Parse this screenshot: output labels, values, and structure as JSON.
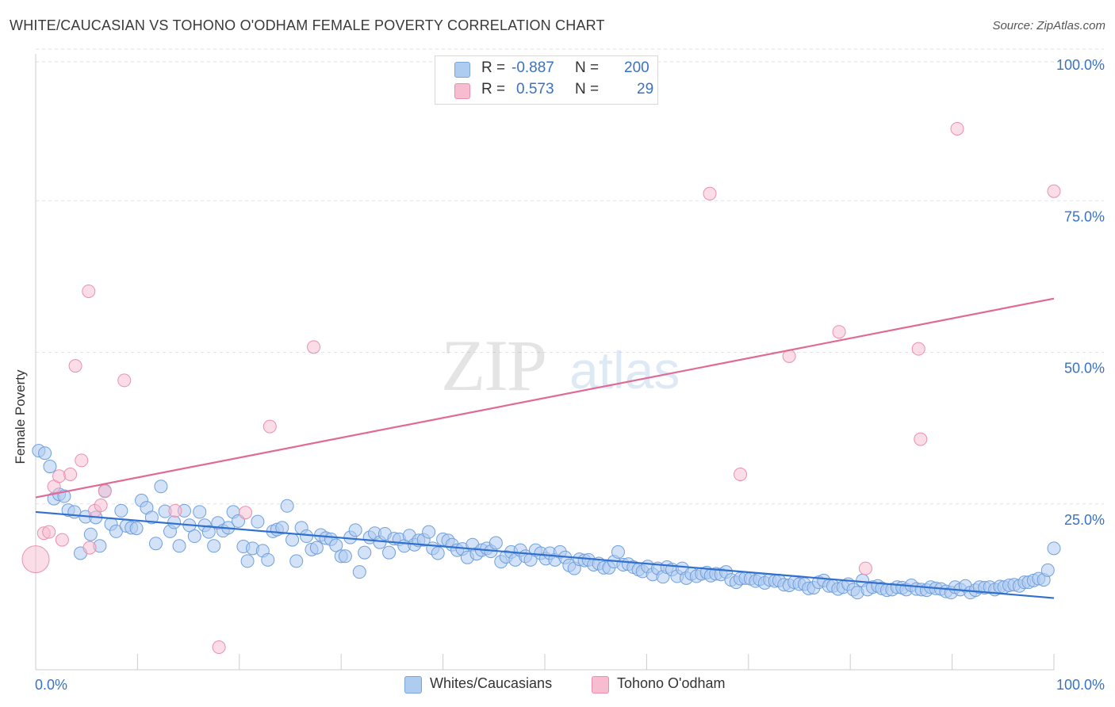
{
  "title": "WHITE/CAUCASIAN VS TOHONO O'ODHAM FEMALE POVERTY CORRELATION CHART",
  "source": "Source: ZipAtlas.com",
  "watermark": {
    "zip": "ZIP",
    "atlas": "atlas"
  },
  "legend_top": {
    "rows": [
      {
        "r_label": "R =",
        "r_value": "-0.887",
        "n_label": "N =",
        "n_value": "200",
        "color": "#aecbf0"
      },
      {
        "r_label": "R =",
        "r_value": "0.573",
        "n_label": "N =",
        "n_value": "29",
        "color": "#f7bcd0"
      }
    ]
  },
  "legend_bottom": [
    {
      "label": "Whites/Caucasians",
      "color": "#aecbf0"
    },
    {
      "label": "Tohono O'odham",
      "color": "#f7bcd0"
    }
  ],
  "chart_data": {
    "type": "scatter",
    "xlabel": "",
    "ylabel": "Female Poverty",
    "xlim": [
      0,
      100
    ],
    "ylim": [
      0,
      100
    ],
    "x_tick_labels": [
      {
        "value": 0,
        "label": "0.0%"
      },
      {
        "value": 100,
        "label": "100.0%"
      }
    ],
    "y_tick_labels": [
      {
        "value": 25,
        "label": "25.0%"
      },
      {
        "value": 50,
        "label": "50.0%"
      },
      {
        "value": 75,
        "label": "75.0%"
      },
      {
        "value": 100,
        "label": "100.0%"
      }
    ],
    "grid": true,
    "series": [
      {
        "name": "Whites/Caucasians",
        "color": "#6fa0dc",
        "fill": "#aecbf0",
        "trend": {
          "x": [
            0,
            100
          ],
          "y": [
            23.8,
            9.6
          ],
          "color": "#2f6fcf"
        },
        "points": [
          [
            0.3,
            33.9
          ],
          [
            0.9,
            33.5
          ],
          [
            1.4,
            31.3
          ],
          [
            1.8,
            26.0
          ],
          [
            2.3,
            26.7
          ],
          [
            2.8,
            26.4
          ],
          [
            3.2,
            24.1
          ],
          [
            3.8,
            23.8
          ],
          [
            4.4,
            17.0
          ],
          [
            4.9,
            23.0
          ],
          [
            5.4,
            20.1
          ],
          [
            5.9,
            22.9
          ],
          [
            6.3,
            18.2
          ],
          [
            6.8,
            27.3
          ],
          [
            7.4,
            21.8
          ],
          [
            7.9,
            20.6
          ],
          [
            8.4,
            24.0
          ],
          [
            8.9,
            21.5
          ],
          [
            9.4,
            21.2
          ],
          [
            9.9,
            21.1
          ],
          [
            10.4,
            25.7
          ],
          [
            10.9,
            24.5
          ],
          [
            11.4,
            22.9
          ],
          [
            11.8,
            18.6
          ],
          [
            12.3,
            28.0
          ],
          [
            12.7,
            23.9
          ],
          [
            13.2,
            20.6
          ],
          [
            13.6,
            22.1
          ],
          [
            14.1,
            18.2
          ],
          [
            14.6,
            24.0
          ],
          [
            15.1,
            21.6
          ],
          [
            15.6,
            19.8
          ],
          [
            16.1,
            23.8
          ],
          [
            16.6,
            21.6
          ],
          [
            17.0,
            20.5
          ],
          [
            17.5,
            18.2
          ],
          [
            17.9,
            22.0
          ],
          [
            18.4,
            20.7
          ],
          [
            18.9,
            21.2
          ],
          [
            19.4,
            23.8
          ],
          [
            19.9,
            22.3
          ],
          [
            20.4,
            18.1
          ],
          [
            20.8,
            15.7
          ],
          [
            21.3,
            17.8
          ],
          [
            21.8,
            22.2
          ],
          [
            22.3,
            17.4
          ],
          [
            22.8,
            15.9
          ],
          [
            23.3,
            20.6
          ],
          [
            23.7,
            20.9
          ],
          [
            24.2,
            21.2
          ],
          [
            24.7,
            24.8
          ],
          [
            25.2,
            19.2
          ],
          [
            25.6,
            15.7
          ],
          [
            26.1,
            21.2
          ],
          [
            26.6,
            19.8
          ],
          [
            27.1,
            17.6
          ],
          [
            27.6,
            17.9
          ],
          [
            28.0,
            20.0
          ],
          [
            28.5,
            19.5
          ],
          [
            29.0,
            19.3
          ],
          [
            29.5,
            18.3
          ],
          [
            30.0,
            16.5
          ],
          [
            30.4,
            16.5
          ],
          [
            30.9,
            19.6
          ],
          [
            31.4,
            20.8
          ],
          [
            31.8,
            13.9
          ],
          [
            32.3,
            17.1
          ],
          [
            32.8,
            19.6
          ],
          [
            33.3,
            20.3
          ],
          [
            33.8,
            18.8
          ],
          [
            34.3,
            20.2
          ],
          [
            34.7,
            17.1
          ],
          [
            35.2,
            19.4
          ],
          [
            35.7,
            19.3
          ],
          [
            36.2,
            18.2
          ],
          [
            36.7,
            19.9
          ],
          [
            37.2,
            18.4
          ],
          [
            37.6,
            19.1
          ],
          [
            38.1,
            19.2
          ],
          [
            38.6,
            20.5
          ],
          [
            39.0,
            17.8
          ],
          [
            39.5,
            17.0
          ],
          [
            40.0,
            19.3
          ],
          [
            40.5,
            19.1
          ],
          [
            40.9,
            18.4
          ],
          [
            41.4,
            17.5
          ],
          [
            41.9,
            17.7
          ],
          [
            42.4,
            16.3
          ],
          [
            42.9,
            18.4
          ],
          [
            43.3,
            16.9
          ],
          [
            43.8,
            17.5
          ],
          [
            44.3,
            17.8
          ],
          [
            44.7,
            17.3
          ],
          [
            45.2,
            18.7
          ],
          [
            45.7,
            15.6
          ],
          [
            46.2,
            16.4
          ],
          [
            46.7,
            17.2
          ],
          [
            47.1,
            15.9
          ],
          [
            47.6,
            17.5
          ],
          [
            48.1,
            16.5
          ],
          [
            48.6,
            15.9
          ],
          [
            49.1,
            17.5
          ],
          [
            49.6,
            17.0
          ],
          [
            50.1,
            16.1
          ],
          [
            50.5,
            17.0
          ],
          [
            51.0,
            15.9
          ],
          [
            51.5,
            17.2
          ],
          [
            52.0,
            16.3
          ],
          [
            52.4,
            15.0
          ],
          [
            52.9,
            14.5
          ],
          [
            53.4,
            16.0
          ],
          [
            53.9,
            15.8
          ],
          [
            54.3,
            15.9
          ],
          [
            54.8,
            15.1
          ],
          [
            55.3,
            15.3
          ],
          [
            55.8,
            14.6
          ],
          [
            56.3,
            14.6
          ],
          [
            56.8,
            15.6
          ],
          [
            57.2,
            17.2
          ],
          [
            57.7,
            15.1
          ],
          [
            58.2,
            15.2
          ],
          [
            58.7,
            14.7
          ],
          [
            59.2,
            14.3
          ],
          [
            59.6,
            14.0
          ],
          [
            60.1,
            14.8
          ],
          [
            60.6,
            13.5
          ],
          [
            61.1,
            14.5
          ],
          [
            61.6,
            13.1
          ],
          [
            62.0,
            14.7
          ],
          [
            62.5,
            14.3
          ],
          [
            63.0,
            13.2
          ],
          [
            63.5,
            14.5
          ],
          [
            63.9,
            12.9
          ],
          [
            64.4,
            13.6
          ],
          [
            64.9,
            13.2
          ],
          [
            65.4,
            13.6
          ],
          [
            65.9,
            13.8
          ],
          [
            66.3,
            13.3
          ],
          [
            66.8,
            13.6
          ],
          [
            67.3,
            13.5
          ],
          [
            67.8,
            13.9
          ],
          [
            68.3,
            12.6
          ],
          [
            68.8,
            12.2
          ],
          [
            69.2,
            12.8
          ],
          [
            69.7,
            12.9
          ],
          [
            70.2,
            12.8
          ],
          [
            70.7,
            12.4
          ],
          [
            71.1,
            12.7
          ],
          [
            71.6,
            12.1
          ],
          [
            72.1,
            12.6
          ],
          [
            72.6,
            12.4
          ],
          [
            73.0,
            12.5
          ],
          [
            73.5,
            11.8
          ],
          [
            74.0,
            11.7
          ],
          [
            74.5,
            12.2
          ],
          [
            75.0,
            11.9
          ],
          [
            75.5,
            11.9
          ],
          [
            75.9,
            11.2
          ],
          [
            76.4,
            11.3
          ],
          [
            76.9,
            12.2
          ],
          [
            77.4,
            12.5
          ],
          [
            77.9,
            11.6
          ],
          [
            78.3,
            11.6
          ],
          [
            78.8,
            11.1
          ],
          [
            79.3,
            11.4
          ],
          [
            79.8,
            11.9
          ],
          [
            80.3,
            11.0
          ],
          [
            80.7,
            10.5
          ],
          [
            81.2,
            12.5
          ],
          [
            81.7,
            11.0
          ],
          [
            82.2,
            11.4
          ],
          [
            82.7,
            11.6
          ],
          [
            83.1,
            11.2
          ],
          [
            83.6,
            10.9
          ],
          [
            84.1,
            11.0
          ],
          [
            84.6,
            11.4
          ],
          [
            85.1,
            11.3
          ],
          [
            85.5,
            11.0
          ],
          [
            86.0,
            11.7
          ],
          [
            86.5,
            11.1
          ],
          [
            87.0,
            11.0
          ],
          [
            87.5,
            10.9
          ],
          [
            87.9,
            11.4
          ],
          [
            88.4,
            11.2
          ],
          [
            88.9,
            11.1
          ],
          [
            89.4,
            10.7
          ],
          [
            89.9,
            10.5
          ],
          [
            90.3,
            11.4
          ],
          [
            90.8,
            11.0
          ],
          [
            91.3,
            11.6
          ],
          [
            91.8,
            10.5
          ],
          [
            92.3,
            10.9
          ],
          [
            92.7,
            11.4
          ],
          [
            93.2,
            11.3
          ],
          [
            93.7,
            11.4
          ],
          [
            94.2,
            11.0
          ],
          [
            94.7,
            11.5
          ],
          [
            95.1,
            11.4
          ],
          [
            95.6,
            11.7
          ],
          [
            96.1,
            11.8
          ],
          [
            96.6,
            11.6
          ],
          [
            97.1,
            12.2
          ],
          [
            97.5,
            12.2
          ],
          [
            98.0,
            12.5
          ],
          [
            98.5,
            12.8
          ],
          [
            99.0,
            12.6
          ],
          [
            99.4,
            14.2
          ],
          [
            100.0,
            17.8
          ]
        ]
      },
      {
        "name": "Tohono O'odham",
        "color": "#ea8fb0",
        "fill": "#f7bcd0",
        "trend": {
          "x": [
            0,
            100
          ],
          "y": [
            26.2,
            59.0
          ],
          "color": "#e06a95"
        },
        "points": [
          [
            0.0,
            16.0,
            1
          ],
          [
            0.8,
            20.3,
            0
          ],
          [
            1.3,
            20.5,
            0
          ],
          [
            1.8,
            28.0,
            0
          ],
          [
            2.3,
            29.7,
            0
          ],
          [
            2.6,
            19.2,
            0
          ],
          [
            3.4,
            30.0,
            0
          ],
          [
            3.9,
            47.9,
            0
          ],
          [
            4.5,
            32.3,
            0
          ],
          [
            5.2,
            60.2,
            0
          ],
          [
            5.3,
            17.9,
            0
          ],
          [
            5.8,
            24.0,
            0
          ],
          [
            6.4,
            24.9,
            0
          ],
          [
            6.8,
            27.2,
            0
          ],
          [
            8.7,
            45.5,
            0
          ],
          [
            13.7,
            24.0,
            0
          ],
          [
            18.0,
            1.5,
            0
          ],
          [
            20.6,
            23.7,
            0
          ],
          [
            23.0,
            37.9,
            0
          ],
          [
            27.3,
            51.0,
            0
          ],
          [
            66.2,
            76.3,
            0
          ],
          [
            69.2,
            30.0,
            0
          ],
          [
            74.0,
            49.5,
            0
          ],
          [
            78.9,
            53.5,
            0
          ],
          [
            81.5,
            14.5,
            0
          ],
          [
            86.7,
            50.7,
            0
          ],
          [
            86.9,
            35.8,
            0
          ],
          [
            90.5,
            87.0,
            0
          ],
          [
            100.0,
            76.7,
            0
          ]
        ]
      }
    ]
  }
}
